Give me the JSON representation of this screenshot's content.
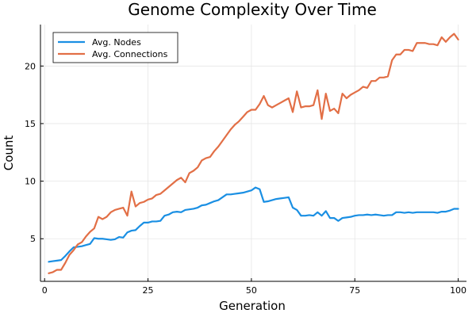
{
  "chart_data": {
    "type": "line",
    "title": "Genome Complexity Over Time",
    "xlabel": "Generation",
    "ylabel": "Count",
    "xlim": [
      -1,
      102
    ],
    "ylim": [
      1.3,
      23.6
    ],
    "xticks": [
      0,
      25,
      50,
      75,
      100
    ],
    "yticks": [
      5,
      10,
      15,
      20
    ],
    "grid": true,
    "legend_position": "top-left",
    "x": [
      1,
      2,
      3,
      4,
      5,
      6,
      7,
      8,
      9,
      10,
      11,
      12,
      13,
      14,
      15,
      16,
      17,
      18,
      19,
      20,
      21,
      22,
      23,
      24,
      25,
      26,
      27,
      28,
      29,
      30,
      31,
      32,
      33,
      34,
      35,
      36,
      37,
      38,
      39,
      40,
      41,
      42,
      43,
      44,
      45,
      46,
      47,
      48,
      49,
      50,
      51,
      52,
      53,
      54,
      55,
      56,
      57,
      58,
      59,
      60,
      61,
      62,
      63,
      64,
      65,
      66,
      67,
      68,
      69,
      70,
      71,
      72,
      73,
      74,
      75,
      76,
      77,
      78,
      79,
      80,
      81,
      82,
      83,
      84,
      85,
      86,
      87,
      88,
      89,
      90,
      91,
      92,
      93,
      94,
      95,
      96,
      97,
      98,
      99,
      100
    ],
    "series": [
      {
        "name": "Avg. Nodes",
        "color": "#1a8fe3",
        "values": [
          3.0,
          3.05,
          3.1,
          3.15,
          3.5,
          3.9,
          4.25,
          4.3,
          4.35,
          4.45,
          4.55,
          5.05,
          5.0,
          5.0,
          4.95,
          4.9,
          4.95,
          5.15,
          5.1,
          5.55,
          5.7,
          5.75,
          6.1,
          6.4,
          6.4,
          6.5,
          6.5,
          6.55,
          7.0,
          7.1,
          7.3,
          7.35,
          7.3,
          7.5,
          7.55,
          7.6,
          7.7,
          7.9,
          7.95,
          8.1,
          8.25,
          8.35,
          8.6,
          8.85,
          8.85,
          8.9,
          8.95,
          9.0,
          9.1,
          9.2,
          9.45,
          9.3,
          8.2,
          8.25,
          8.35,
          8.45,
          8.5,
          8.55,
          8.6,
          7.7,
          7.5,
          7.0,
          7.0,
          7.05,
          7.0,
          7.3,
          7.0,
          7.4,
          6.8,
          6.8,
          6.55,
          6.8,
          6.85,
          6.9,
          7.0,
          7.05,
          7.05,
          7.1,
          7.05,
          7.1,
          7.05,
          7.0,
          7.05,
          7.05,
          7.3,
          7.3,
          7.25,
          7.3,
          7.25,
          7.3,
          7.3,
          7.3,
          7.3,
          7.3,
          7.25,
          7.35,
          7.35,
          7.45,
          7.6,
          7.6
        ]
      },
      {
        "name": "Avg. Connections",
        "color": "#e26f46",
        "values": [
          2.0,
          2.1,
          2.3,
          2.3,
          2.9,
          3.6,
          4.0,
          4.5,
          4.7,
          5.2,
          5.6,
          5.9,
          6.9,
          6.7,
          6.9,
          7.3,
          7.5,
          7.6,
          7.7,
          7.0,
          9.1,
          7.8,
          8.1,
          8.2,
          8.4,
          8.5,
          8.8,
          8.9,
          9.2,
          9.5,
          9.8,
          10.1,
          10.3,
          9.9,
          10.7,
          10.9,
          11.2,
          11.8,
          12.0,
          12.1,
          12.6,
          13.0,
          13.5,
          14.0,
          14.5,
          14.9,
          15.2,
          15.6,
          16.0,
          16.2,
          16.2,
          16.7,
          17.4,
          16.6,
          16.4,
          16.6,
          16.8,
          17.0,
          17.2,
          16.0,
          17.8,
          16.4,
          16.5,
          16.5,
          16.6,
          17.9,
          15.4,
          17.6,
          16.1,
          16.3,
          15.9,
          17.6,
          17.2,
          17.5,
          17.7,
          17.9,
          18.2,
          18.1,
          18.7,
          18.7,
          19.0,
          19.0,
          19.1,
          20.5,
          21.0,
          21.0,
          21.4,
          21.4,
          21.3,
          22.0,
          22.0,
          22.0,
          21.9,
          21.9,
          21.8,
          22.5,
          22.1,
          22.5,
          22.8,
          22.3
        ]
      }
    ]
  }
}
